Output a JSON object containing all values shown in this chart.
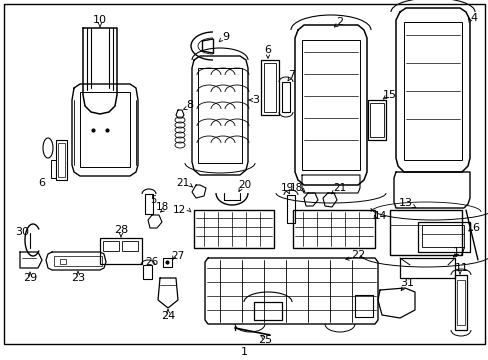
{
  "background_color": "#ffffff",
  "border_color": "#000000",
  "line_color": "#000000",
  "text_color": "#000000",
  "bottom_label": "1",
  "figsize": [
    4.89,
    3.6
  ],
  "dpi": 100,
  "label_fs": 7.5
}
